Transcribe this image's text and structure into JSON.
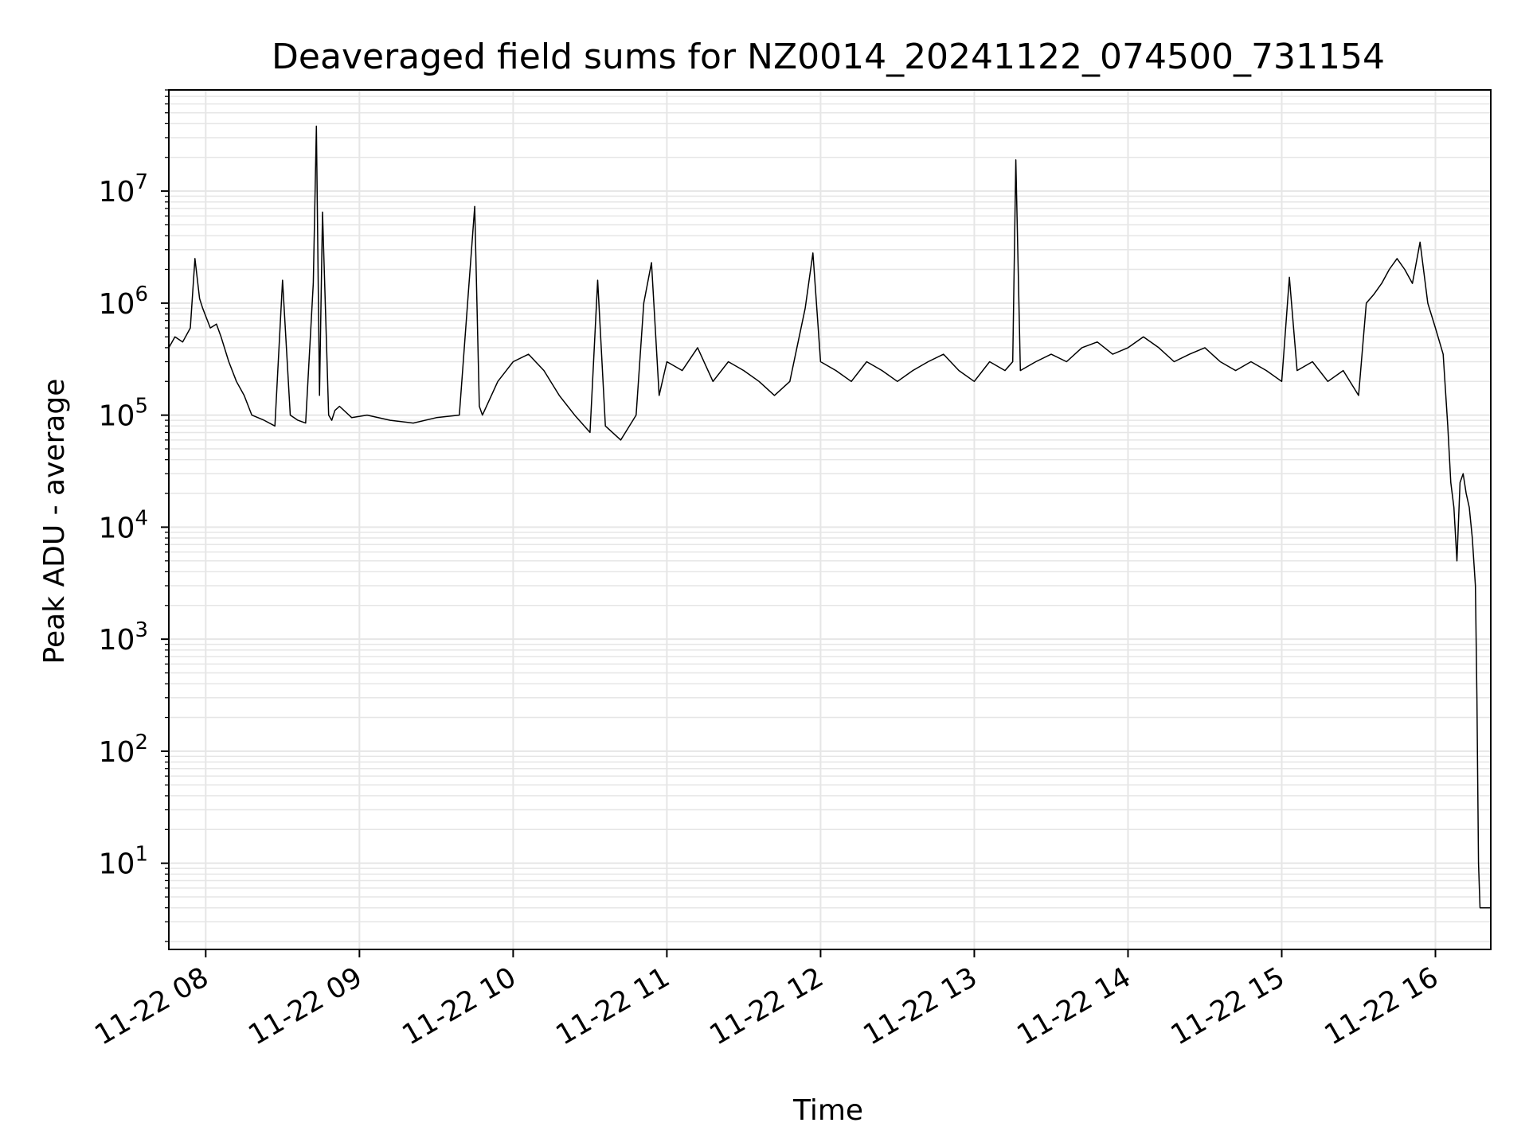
{
  "chart_data": {
    "type": "line",
    "title": "Deaveraged field sums for NZ0014_20241122_074500_731154",
    "xlabel": "Time",
    "ylabel": "Peak ADU - average",
    "yscale": "log",
    "grid": true,
    "line_color": "#000000",
    "grid_color": "#e6e6e6",
    "x_ticks": [
      "11-22 08",
      "11-22 09",
      "11-22 10",
      "11-22 11",
      "11-22 12",
      "11-22 13",
      "11-22 14",
      "11-22 15",
      "11-22 16"
    ],
    "x_tick_hours": [
      8,
      9,
      10,
      11,
      12,
      13,
      14,
      15,
      16
    ],
    "x_range_hours": [
      7.76,
      16.36
    ],
    "y_ticks": [
      {
        "base": "10",
        "exp": "1",
        "value": 10
      },
      {
        "base": "10",
        "exp": "2",
        "value": 100
      },
      {
        "base": "10",
        "exp": "3",
        "value": 1000
      },
      {
        "base": "10",
        "exp": "4",
        "value": 10000
      },
      {
        "base": "10",
        "exp": "5",
        "value": 100000
      },
      {
        "base": "10",
        "exp": "6",
        "value": 1000000
      },
      {
        "base": "10",
        "exp": "7",
        "value": 10000000
      }
    ],
    "ylim": [
      1.7,
      80000000
    ],
    "series": [
      {
        "x_hours": [
          7.76,
          7.8,
          7.85,
          7.9,
          7.93,
          7.96,
          7.98,
          8.03,
          8.07,
          8.1,
          8.15,
          8.2,
          8.25,
          8.3,
          8.38,
          8.45,
          8.5,
          8.55,
          8.6,
          8.65,
          8.7,
          8.72,
          8.74,
          8.76,
          8.8,
          8.82,
          8.84,
          8.87,
          8.95,
          9.05,
          9.2,
          9.35,
          9.5,
          9.65,
          9.75,
          9.78,
          9.8,
          9.9,
          10.0,
          10.1,
          10.2,
          10.3,
          10.4,
          10.5,
          10.55,
          10.6,
          10.7,
          10.8,
          10.85,
          10.9,
          10.95,
          11.0,
          11.1,
          11.2,
          11.3,
          11.4,
          11.5,
          11.6,
          11.7,
          11.8,
          11.9,
          11.95,
          12.0,
          12.1,
          12.2,
          12.3,
          12.4,
          12.5,
          12.6,
          12.7,
          12.8,
          12.9,
          13.0,
          13.1,
          13.2,
          13.25,
          13.27,
          13.3,
          13.4,
          13.5,
          13.6,
          13.7,
          13.8,
          13.9,
          14.0,
          14.1,
          14.2,
          14.3,
          14.4,
          14.5,
          14.6,
          14.7,
          14.8,
          14.9,
          15.0,
          15.05,
          15.1,
          15.2,
          15.3,
          15.4,
          15.5,
          15.55,
          15.6,
          15.65,
          15.7,
          15.75,
          15.8,
          15.85,
          15.9,
          15.95,
          16.0,
          16.05,
          16.08,
          16.1,
          16.12,
          16.14,
          16.16,
          16.18,
          16.2,
          16.22,
          16.24,
          16.26,
          16.27,
          16.28,
          16.29,
          16.3,
          16.32,
          16.34,
          16.36
        ],
        "y": [
          400000,
          500000,
          450000,
          600000,
          2500000,
          1100000,
          900000,
          600000,
          650000,
          500000,
          300000,
          200000,
          150000,
          100000,
          90000,
          80000,
          1600000,
          100000,
          90000,
          85000,
          1500000,
          38000000,
          150000,
          6500000,
          100000,
          90000,
          110000,
          120000,
          95000,
          100000,
          90000,
          85000,
          95000,
          100000,
          7300000,
          120000,
          100000,
          200000,
          300000,
          350000,
          250000,
          150000,
          100000,
          70000,
          1600000,
          80000,
          60000,
          100000,
          1000000,
          2300000,
          150000,
          300000,
          250000,
          400000,
          200000,
          300000,
          250000,
          200000,
          150000,
          200000,
          900000,
          2800000,
          300000,
          250000,
          200000,
          300000,
          250000,
          200000,
          250000,
          300000,
          350000,
          250000,
          200000,
          300000,
          250000,
          300000,
          19000000,
          250000,
          300000,
          350000,
          300000,
          400000,
          450000,
          350000,
          400000,
          500000,
          400000,
          300000,
          350000,
          400000,
          300000,
          250000,
          300000,
          250000,
          200000,
          1700000,
          250000,
          300000,
          200000,
          250000,
          150000,
          1000000,
          1200000,
          1500000,
          2000000,
          2500000,
          2000000,
          1500000,
          3500000,
          1000000,
          600000,
          350000,
          80000,
          25000,
          15000,
          5000,
          25000,
          30000,
          20000,
          15000,
          8000,
          3000,
          300,
          10,
          4,
          4,
          4,
          4,
          4
        ]
      }
    ]
  }
}
